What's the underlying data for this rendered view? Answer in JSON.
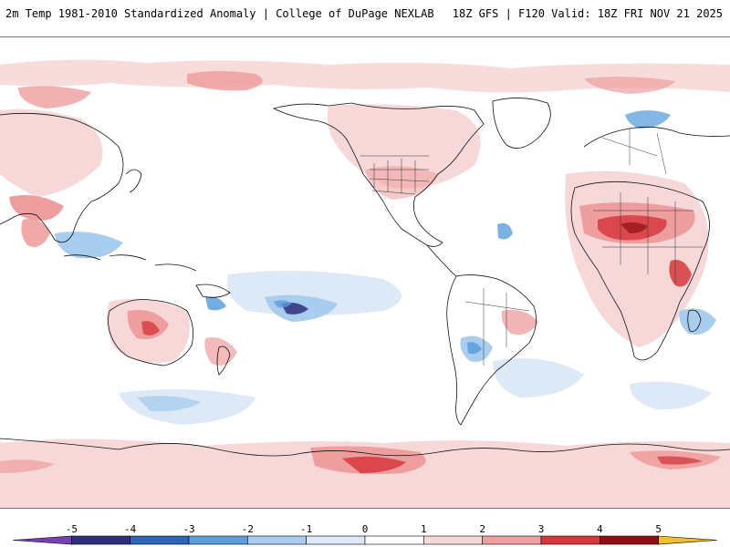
{
  "header": {
    "title_left": "2m Temp 1981-2010 Standardized Anomaly | College of DuPage NEXLAB",
    "title_right": "18Z GFS | F120 Valid: 18Z FRI NOV 21 2025"
  },
  "colorbar": {
    "ticks": [
      "-5",
      "-4",
      "-3",
      "-2",
      "-1",
      "0",
      "1",
      "2",
      "3",
      "4",
      "5"
    ],
    "segments": [
      {
        "from": -6,
        "to": -5,
        "color": "#7b3fb5"
      },
      {
        "from": -5,
        "to": -4,
        "color": "#2c2f7a"
      },
      {
        "from": -4,
        "to": -3,
        "color": "#2f64b8"
      },
      {
        "from": -3,
        "to": -2,
        "color": "#5b9fdc"
      },
      {
        "from": -2,
        "to": -1,
        "color": "#a9cdee"
      },
      {
        "from": -1,
        "to": 0,
        "color": "#dde9f6"
      },
      {
        "from": 0,
        "to": 1,
        "color": "#ffffff"
      },
      {
        "from": 1,
        "to": 2,
        "color": "#f7d8d8"
      },
      {
        "from": 2,
        "to": 3,
        "color": "#ee9e9e"
      },
      {
        "from": 3,
        "to": 4,
        "color": "#d6383e"
      },
      {
        "from": 4,
        "to": 5,
        "color": "#8e0f12"
      },
      {
        "from": 5,
        "to": 6,
        "color": "#f0c030"
      }
    ]
  },
  "map": {
    "colors": {
      "light_red": "#f7d8d8",
      "mid_red": "#ee9e9e",
      "red": "#d6383e",
      "dark_red": "#8e0f12",
      "light_blue": "#dde9f6",
      "mid_blue": "#a9cdee",
      "blue": "#5b9fdc",
      "dark_blue": "#2c2f7a",
      "coast": "#111111"
    }
  }
}
